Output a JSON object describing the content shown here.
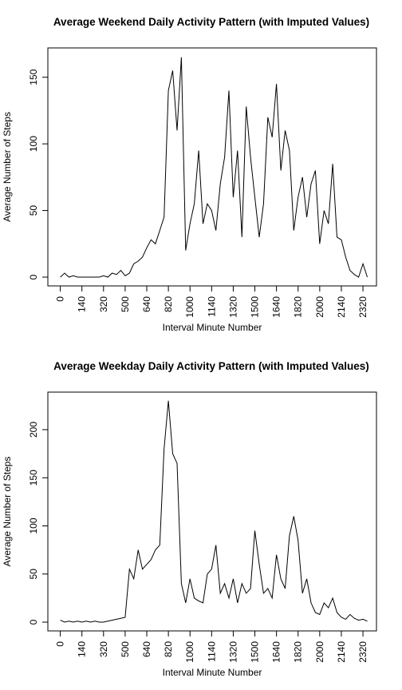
{
  "chart_data": [
    {
      "type": "line",
      "title": "Average Weekend Daily Activity Pattern (with Imputed Values)",
      "x_label": "Interval Minute Number",
      "y_label": "Average Number of Steps",
      "x": [
        0,
        4,
        8,
        12,
        16,
        20,
        24,
        28,
        32,
        36,
        40,
        44,
        48,
        52,
        56,
        60,
        64,
        68,
        72,
        76,
        80,
        84,
        88,
        92,
        96,
        100,
        104,
        108,
        112,
        116,
        120,
        124,
        128,
        132,
        136,
        140,
        144,
        148,
        152,
        156,
        160,
        164,
        168,
        172,
        176,
        180,
        184,
        188,
        192,
        196,
        200,
        204,
        208,
        212,
        216,
        220,
        224,
        228,
        232,
        236,
        240,
        244,
        248,
        252,
        256,
        260,
        264,
        268,
        272,
        276,
        280,
        284
      ],
      "series": [
        {
          "name": "weekend",
          "color": "#000000",
          "values": [
            0,
            3,
            0,
            1,
            0,
            0,
            0,
            0,
            0,
            0,
            1,
            0,
            3,
            2,
            5,
            1,
            3,
            10,
            12,
            15,
            22,
            28,
            25,
            35,
            45,
            140,
            155,
            110,
            165,
            20,
            40,
            55,
            95,
            40,
            55,
            50,
            35,
            70,
            90,
            140,
            60,
            95,
            30,
            128,
            90,
            60,
            30,
            55,
            120,
            105,
            145,
            80,
            110,
            95,
            35,
            60,
            75,
            45,
            70,
            80,
            25,
            50,
            40,
            85,
            30,
            28,
            15,
            5,
            2,
            0,
            10,
            0
          ]
        }
      ],
      "xlim": [
        -11.5,
        292.5
      ],
      "xticks": [
        0,
        {
          "value": 20,
          "label": "140"
        },
        {
          "value": 40,
          "label": "320"
        },
        {
          "value": 60,
          "label": "500"
        },
        {
          "value": 80,
          "label": "640"
        },
        {
          "value": 100,
          "label": "820"
        },
        {
          "value": 120,
          "label": "1000"
        },
        {
          "value": 140,
          "label": "1140"
        },
        {
          "value": 160,
          "label": "1320"
        },
        {
          "value": 180,
          "label": "1500"
        },
        {
          "value": 200,
          "label": "1640"
        },
        {
          "value": 220,
          "label": "1820"
        },
        {
          "value": 240,
          "label": "2000"
        },
        {
          "value": 260,
          "label": "2140"
        },
        {
          "value": 280,
          "label": "2320"
        }
      ],
      "ylim": [
        -6.6,
        172
      ],
      "yticks": [
        0,
        50,
        100,
        150
      ]
    },
    {
      "type": "line",
      "title": "Average Weekday Daily Activity Pattern (with Imputed Values)",
      "x_label": "Interval Minute Number",
      "y_label": "Average Number of Steps",
      "x": [
        0,
        4,
        8,
        12,
        16,
        20,
        24,
        28,
        32,
        36,
        40,
        44,
        48,
        52,
        56,
        60,
        64,
        68,
        72,
        76,
        80,
        84,
        88,
        92,
        96,
        100,
        104,
        108,
        112,
        116,
        120,
        124,
        128,
        132,
        136,
        140,
        144,
        148,
        152,
        156,
        160,
        164,
        168,
        172,
        176,
        180,
        184,
        188,
        192,
        196,
        200,
        204,
        208,
        212,
        216,
        220,
        224,
        228,
        232,
        236,
        240,
        244,
        248,
        252,
        256,
        260,
        264,
        268,
        272,
        276,
        280,
        284
      ],
      "series": [
        {
          "name": "weekday",
          "color": "#000000",
          "values": [
            2,
            0,
            1,
            0,
            1,
            0,
            1,
            0,
            1,
            0,
            0,
            1,
            2,
            3,
            4,
            5,
            55,
            45,
            75,
            55,
            60,
            65,
            75,
            80,
            180,
            230,
            175,
            165,
            40,
            20,
            45,
            25,
            22,
            20,
            50,
            55,
            80,
            30,
            40,
            25,
            45,
            20,
            40,
            30,
            35,
            95,
            60,
            30,
            35,
            25,
            70,
            45,
            35,
            90,
            110,
            85,
            30,
            45,
            20,
            10,
            8,
            20,
            15,
            25,
            10,
            5,
            3,
            8,
            4,
            2,
            3,
            1
          ]
        }
      ],
      "xlim": [
        -11.5,
        292.5
      ],
      "xticks": [
        0,
        {
          "value": 20,
          "label": "140"
        },
        {
          "value": 40,
          "label": "320"
        },
        {
          "value": 60,
          "label": "500"
        },
        {
          "value": 80,
          "label": "640"
        },
        {
          "value": 100,
          "label": "820"
        },
        {
          "value": 120,
          "label": "1000"
        },
        {
          "value": 140,
          "label": "1140"
        },
        {
          "value": 160,
          "label": "1320"
        },
        {
          "value": 180,
          "label": "1500"
        },
        {
          "value": 200,
          "label": "1640"
        },
        {
          "value": 220,
          "label": "1820"
        },
        {
          "value": 240,
          "label": "2000"
        },
        {
          "value": 260,
          "label": "2140"
        },
        {
          "value": 280,
          "label": "2320"
        }
      ],
      "ylim": [
        -9.1,
        239
      ],
      "yticks": [
        0,
        50,
        100,
        150,
        200
      ]
    }
  ]
}
